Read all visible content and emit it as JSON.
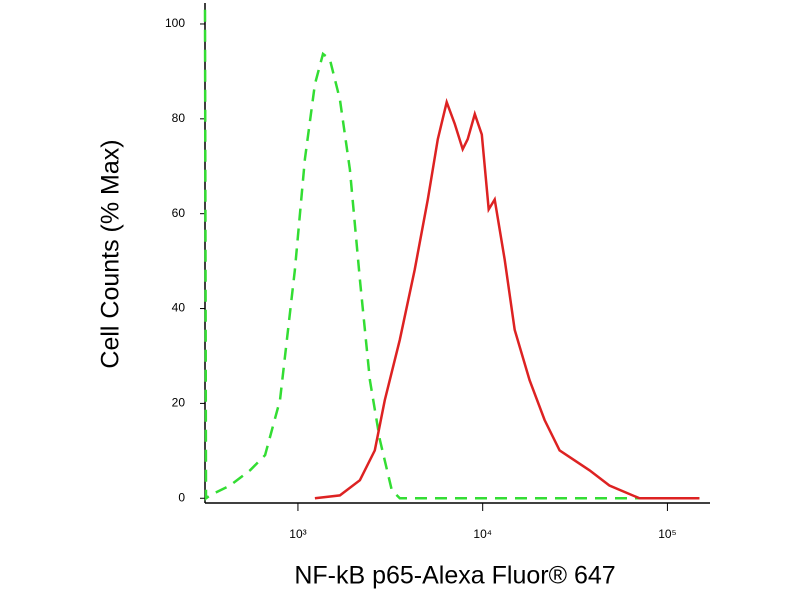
{
  "chart_data": {
    "type": "line",
    "xlabel": "NF-kB p65-Alexa Fluor® 647",
    "ylabel": "Cell Counts (% Max)",
    "xscale": "log",
    "xlim": [
      314,
      170000
    ],
    "xticks": [
      {
        "value": 1000,
        "label": "10³"
      },
      {
        "value": 10000,
        "label": "10⁴"
      },
      {
        "value": 100000,
        "label": "10⁵"
      }
    ],
    "ylim": [
      -1,
      104
    ],
    "yticks": [
      0,
      20,
      40,
      60,
      80,
      100
    ],
    "grid": false,
    "series": [
      {
        "color": "#33dd33",
        "linestyle": "dashed",
        "x": [
          314,
          318,
          334,
          429,
          551,
          664,
          800,
          963,
          1091,
          1236,
          1366,
          1488,
          1687,
          1910,
          2164,
          2451,
          2776,
          3221,
          3559,
          148900
        ],
        "values": [
          103,
          0,
          0.6,
          2.7,
          5.9,
          9.1,
          20.7,
          48.2,
          71.5,
          87.3,
          93.7,
          92.6,
          84.1,
          69.3,
          46.1,
          24.9,
          12.3,
          1.7,
          0,
          0
        ]
      },
      {
        "color": "#dd2222",
        "linestyle": "solid",
        "x": [
          1236,
          1687,
          2164,
          2606,
          2951,
          3559,
          4285,
          5047,
          5715,
          6385,
          7060,
          7800,
          8300,
          9060,
          9885,
          10780,
          11610,
          13150,
          14900,
          17950,
          21630,
          26070,
          31410,
          37840,
          48540,
          70570,
          148900
        ],
        "values": [
          0,
          0.6,
          3.8,
          10.1,
          20.7,
          33.4,
          48.2,
          63,
          75.7,
          83.5,
          78.9,
          73.6,
          75.7,
          81,
          76.7,
          60.9,
          63,
          50.3,
          35.5,
          24.9,
          16.5,
          10.1,
          8,
          5.9,
          2.7,
          0,
          0
        ]
      }
    ]
  }
}
